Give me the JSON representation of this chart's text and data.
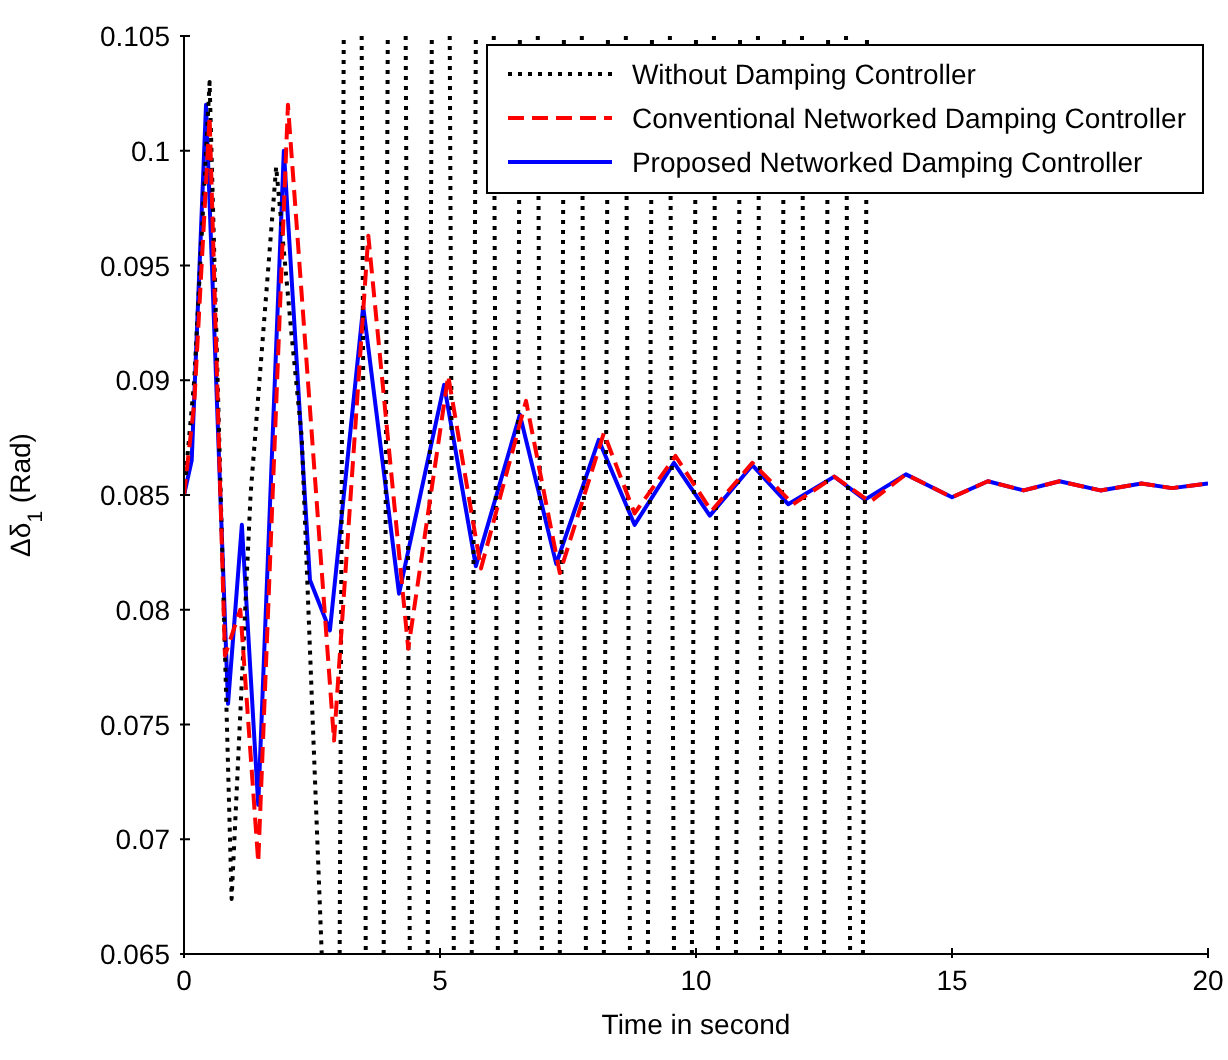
{
  "chart_data": {
    "type": "line",
    "xlabel": "Time in second",
    "ylabel": "Δδ$_{1}$ (Rad)",
    "xlim": [
      0,
      20
    ],
    "xticks": [
      0,
      5,
      10,
      15,
      20
    ],
    "ylim": [
      0.065,
      0.105
    ],
    "yticks": [
      0.065,
      0.07,
      0.075,
      0.08,
      0.085,
      0.09,
      0.095,
      0.1,
      0.105
    ],
    "grid": false,
    "legend": "top right",
    "marker": "none",
    "series": [
      {
        "name": "Without Damping Controller",
        "color": "#000000",
        "line_style": "dotted",
        "x": [
          0,
          0.2,
          0.5,
          0.93,
          1.3,
          1.8,
          2.1,
          2.3,
          2.69,
          2.7,
          3.04,
          3.12,
          3.13,
          3.47,
          3.55,
          3.56,
          3.9,
          3.98,
          3.99,
          4.33,
          4.41,
          4.42,
          4.76,
          4.84,
          4.85,
          5.19,
          5.27,
          5.28,
          5.62,
          5.7,
          5.71,
          6.05,
          6.13,
          6.14,
          6.48,
          6.56,
          6.57,
          6.91,
          6.99,
          7.0,
          7.34,
          7.42,
          7.43,
          7.77,
          7.85,
          7.86,
          8.2,
          8.28,
          8.29,
          8.63,
          8.71,
          8.72,
          9.06,
          9.14,
          9.15,
          9.49,
          9.57,
          9.58,
          9.92,
          10.0,
          10.01,
          10.35,
          10.43,
          10.44,
          10.78,
          10.86,
          10.87,
          11.21,
          11.29,
          11.3,
          11.64,
          11.72,
          11.73,
          12.07,
          12.15,
          12.16,
          12.5,
          12.58,
          12.59,
          12.93,
          13.01,
          13.02,
          13.26,
          13.34
        ],
        "values": [
          0.085,
          0.09,
          0.103,
          0.0674,
          0.085,
          0.0993,
          0.092,
          0.0875,
          0.065,
          null,
          0.065,
          0.105,
          null,
          0.105,
          0.065,
          null,
          0.065,
          0.105,
          null,
          0.105,
          0.065,
          null,
          0.065,
          0.105,
          null,
          0.105,
          0.065,
          null,
          0.065,
          0.105,
          null,
          0.105,
          0.065,
          null,
          0.065,
          0.105,
          null,
          0.105,
          0.065,
          null,
          0.065,
          0.105,
          null,
          0.105,
          0.065,
          null,
          0.065,
          0.105,
          null,
          0.105,
          0.065,
          null,
          0.065,
          0.105,
          null,
          0.105,
          0.065,
          null,
          0.065,
          0.105,
          null,
          0.105,
          0.065,
          null,
          0.065,
          0.105,
          null,
          0.105,
          0.065,
          null,
          0.065,
          0.105,
          null,
          0.105,
          0.065,
          null,
          0.065,
          0.105,
          null,
          0.105,
          0.065,
          null,
          0.065,
          0.105
        ]
      },
      {
        "name": "Conventional Networked Damping Controller",
        "color": "#ff0000",
        "line_style": "dashed",
        "x": [
          0,
          0.2,
          0.5,
          0.8,
          1.1,
          1.45,
          2.03,
          2.93,
          3.6,
          4.38,
          5.16,
          5.8,
          6.68,
          7.34,
          8.2,
          8.8,
          9.6,
          10.3,
          11.1,
          11.9,
          12.7,
          13.4,
          14.1,
          15.0,
          15.7,
          16.4,
          17.1,
          17.9,
          18.7,
          19.3,
          20
        ],
        "values": [
          0.085,
          0.089,
          0.1015,
          0.078,
          0.08,
          0.069,
          0.102,
          0.0743,
          0.0963,
          0.0783,
          0.0902,
          0.0818,
          0.0891,
          0.0816,
          0.0877,
          0.0842,
          0.0867,
          0.0843,
          0.0864,
          0.0846,
          0.0858,
          0.0847,
          0.0859,
          0.0849,
          0.0856,
          0.0852,
          0.0856,
          0.0852,
          0.0855,
          0.0853,
          0.0855
        ]
      },
      {
        "name": "Proposed Networked Damping Controller",
        "color": "#0000ff",
        "line_style": "solid",
        "x": [
          0,
          0.15,
          0.43,
          0.86,
          1.13,
          1.45,
          1.95,
          2.46,
          2.85,
          3.5,
          4.2,
          5.08,
          5.7,
          6.56,
          7.27,
          8.1,
          8.8,
          9.57,
          10.27,
          11.1,
          11.8,
          12.7,
          13.3,
          14.1,
          15.0,
          15.7,
          16.4,
          17.1,
          17.9,
          18.7,
          19.3,
          20
        ],
        "values": [
          0.085,
          0.0865,
          0.102,
          0.0759,
          0.0837,
          0.0715,
          0.1,
          0.0813,
          0.0791,
          0.0932,
          0.0807,
          0.0898,
          0.0819,
          0.0885,
          0.082,
          0.0874,
          0.0837,
          0.0864,
          0.0841,
          0.0863,
          0.0846,
          0.0858,
          0.0848,
          0.0859,
          0.0849,
          0.0856,
          0.0852,
          0.0856,
          0.0852,
          0.0855,
          0.0853,
          0.0855
        ]
      }
    ]
  }
}
